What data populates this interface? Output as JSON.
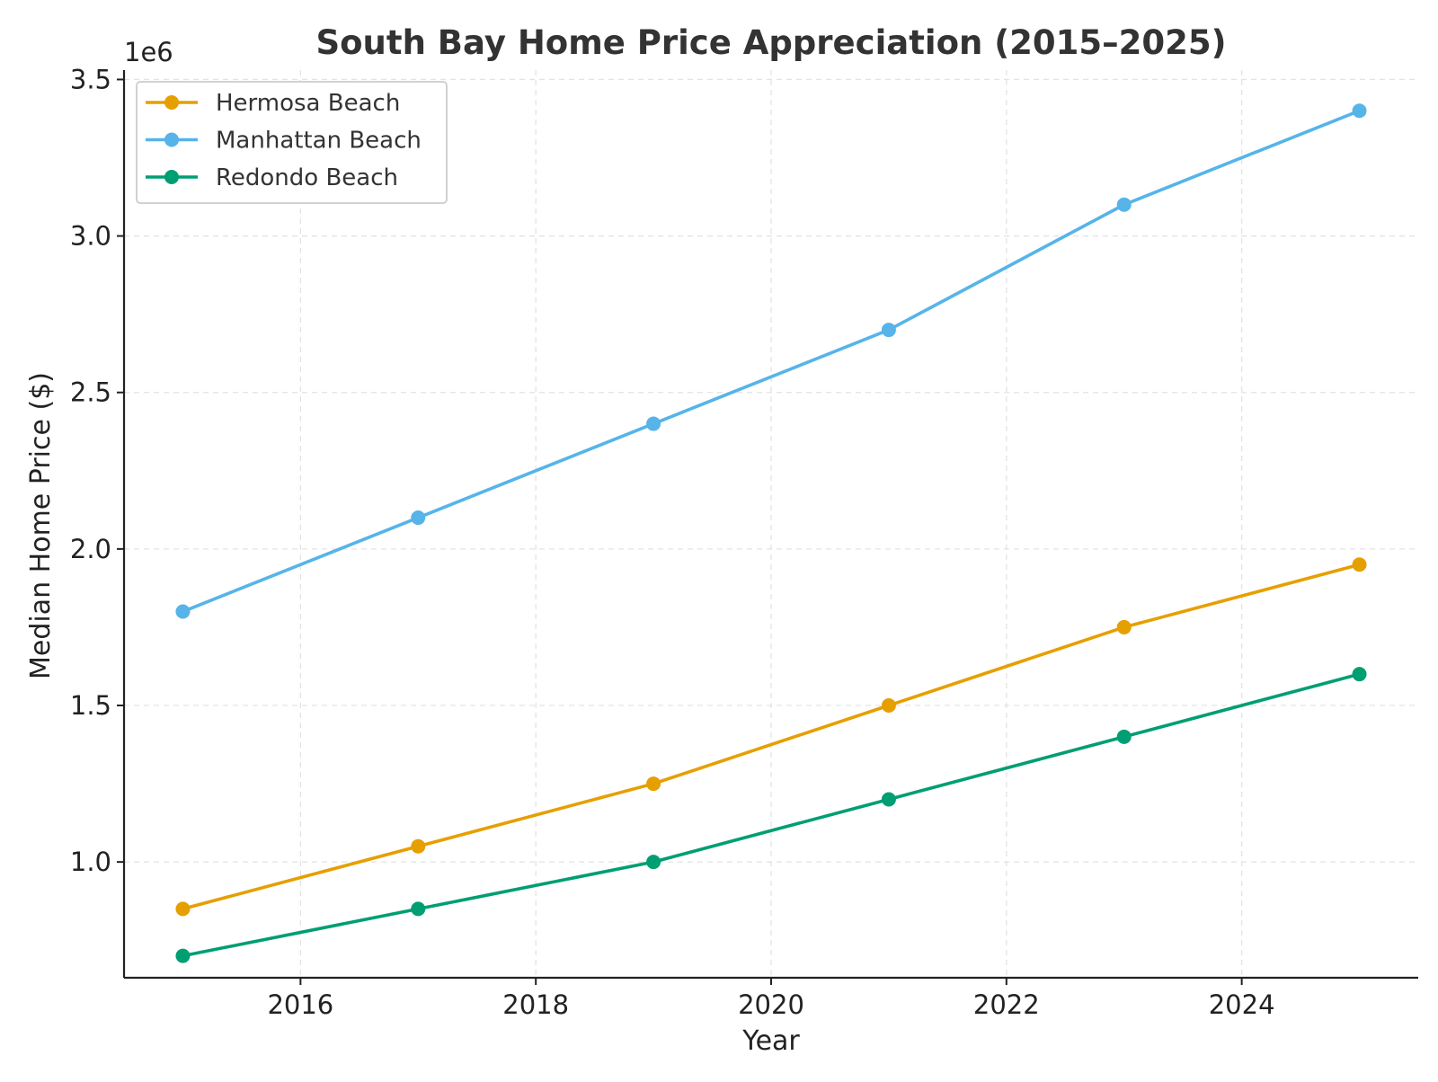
{
  "chart_data": {
    "type": "line",
    "title": "South Bay Home Price Appreciation (2015–2025)",
    "xlabel": "Year",
    "ylabel": "Median Home Price ($)",
    "y_offset_label": "1e6",
    "x": [
      2015,
      2017,
      2019,
      2021,
      2023,
      2025
    ],
    "xlim": [
      2014.5,
      2025.5
    ],
    "ylim": [
      630000,
      3530000
    ],
    "x_ticks": [
      2016,
      2018,
      2020,
      2022,
      2024
    ],
    "x_tick_labels": [
      "2016",
      "2018",
      "2020",
      "2022",
      "2024"
    ],
    "y_ticks": [
      1000000,
      1500000,
      2000000,
      2500000,
      3000000,
      3500000
    ],
    "y_tick_labels": [
      "1.0",
      "1.5",
      "2.0",
      "2.5",
      "3.0",
      "3.5"
    ],
    "grid": true,
    "legend_position": "top-left",
    "series": [
      {
        "name": "Hermosa Beach",
        "color": "#E69F00",
        "values": [
          850000,
          1050000,
          1250000,
          1500000,
          1750000,
          1950000
        ]
      },
      {
        "name": "Manhattan Beach",
        "color": "#56B4E9",
        "values": [
          1800000,
          2100000,
          2400000,
          2700000,
          3100000,
          3400000
        ]
      },
      {
        "name": "Redondo Beach",
        "color": "#009E73",
        "values": [
          700000,
          850000,
          1000000,
          1200000,
          1400000,
          1600000
        ]
      }
    ]
  }
}
